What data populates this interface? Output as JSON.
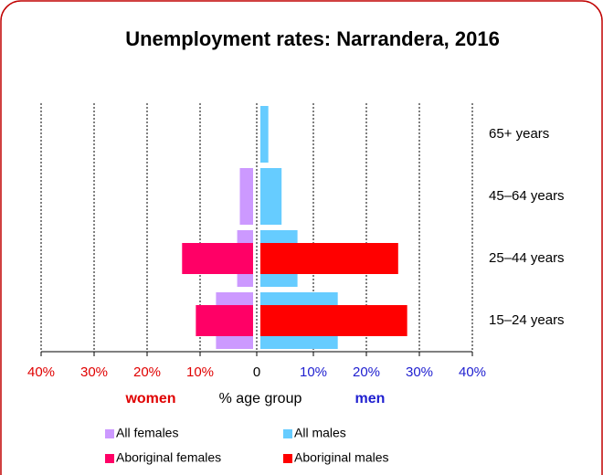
{
  "chart_data": {
    "type": "bar",
    "title": "Unemployment rates: Narrandera, 2016",
    "categories": [
      "65+ years",
      "45–64 years",
      "25–44 years",
      "15–24 years"
    ],
    "series": [
      {
        "name": "All females",
        "color": "#cc99ff",
        "side": "women",
        "values": [
          null,
          2.5,
          3,
          7
        ]
      },
      {
        "name": "All males",
        "color": "#66ccff",
        "side": "men",
        "values": [
          1.5,
          4,
          7,
          14.6
        ]
      },
      {
        "name": "Aboriginal females",
        "color": "#ff0066",
        "side": "women",
        "values": [
          null,
          null,
          13.4,
          10.8
        ]
      },
      {
        "name": "Aboriginal males",
        "color": "#ff0000",
        "side": "men",
        "values": [
          null,
          null,
          26,
          27.7
        ]
      }
    ],
    "women_label": "women",
    "men_label": "men",
    "xlabel": "% age group",
    "xlim": [
      -40,
      40
    ],
    "xticks": [
      {
        "value": -40,
        "label": "40%"
      },
      {
        "value": -30,
        "label": "30%"
      },
      {
        "value": -20,
        "label": "20%"
      },
      {
        "value": -10,
        "label": "10%"
      },
      0,
      {
        "value": 10,
        "label": "10%"
      },
      {
        "value": 20,
        "label": "20%"
      },
      {
        "value": 30,
        "label": "30%"
      },
      {
        "value": 40,
        "label": "40%"
      }
    ],
    "grid": true
  }
}
